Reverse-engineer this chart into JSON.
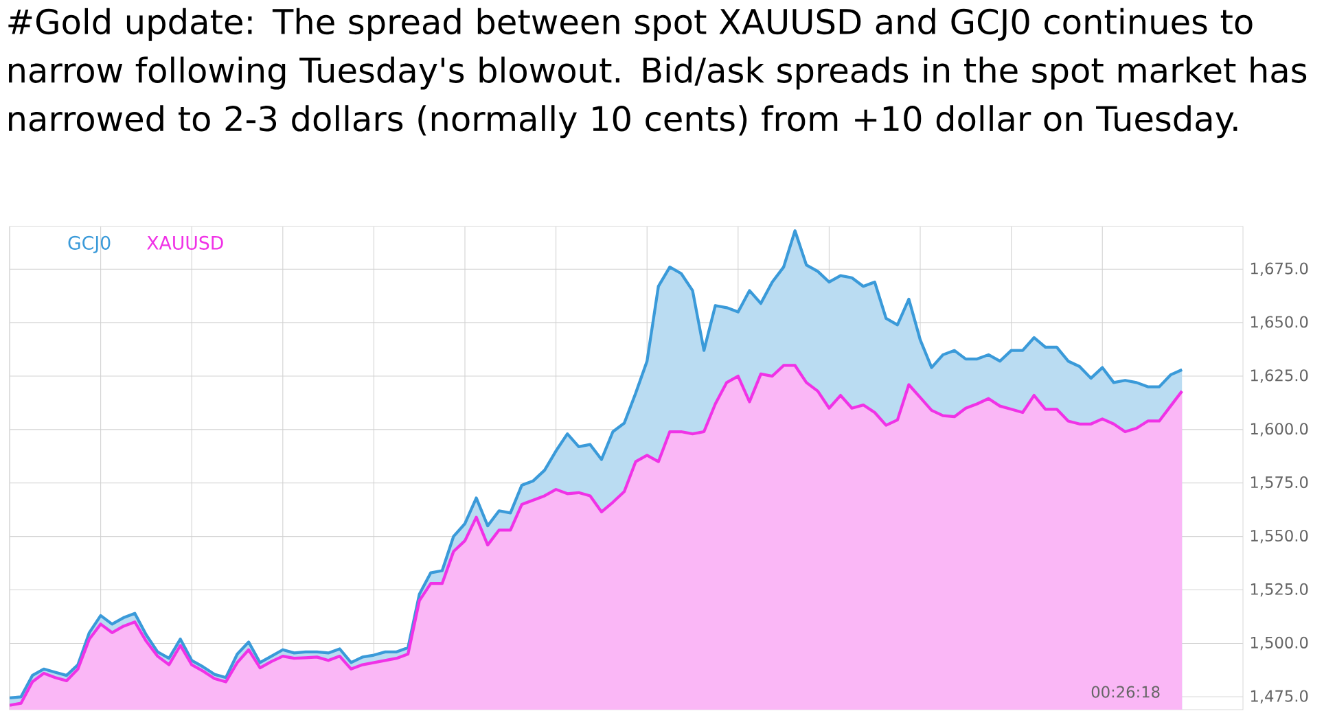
{
  "chart_data": {
    "type": "area",
    "title": "#Gold update: The spread between spot XAUUSD and GCJ0 continues to narrow following Tuesday's blowout. Bid/ask spreads in the spot market has narrowed to 2-3 dollars (normally 10 cents) from +10 dollar on Tuesday.",
    "categories": [
      null,
      null,
      null,
      null,
      null,
      null,
      null,
      null,
      null,
      null,
      null,
      null,
      null,
      null,
      null,
      null,
      null,
      null,
      null,
      null,
      null,
      null,
      null,
      null,
      null,
      null,
      null,
      null,
      null,
      null,
      null,
      null,
      null,
      null,
      null,
      null,
      null,
      null,
      null,
      null,
      null,
      null,
      null,
      null,
      null,
      null,
      null,
      null,
      null,
      null,
      null,
      null,
      null,
      null,
      null,
      null,
      null,
      null,
      null,
      null,
      null,
      null,
      null,
      null,
      null,
      null,
      null,
      null,
      null,
      null,
      null,
      null,
      null,
      null,
      null,
      null,
      null,
      null,
      null,
      null,
      null,
      null,
      null,
      null,
      null,
      null,
      null,
      null,
      null,
      null,
      null,
      null,
      null,
      null,
      null,
      null,
      null,
      null,
      null,
      null,
      null,
      null,
      null,
      null
    ],
    "series": [
      {
        "name": "GCJ0",
        "color": "#3a9ad9",
        "values": [
          1474.5,
          1475,
          1485,
          1488,
          1486.5,
          1485,
          1490,
          1505,
          1513,
          1509,
          1512,
          1514,
          1504,
          1496,
          1493,
          1502,
          1492,
          1489,
          1485.5,
          1484,
          1495,
          1500.6,
          1491,
          1494,
          1497,
          1495.5,
          1496,
          1496,
          1495.5,
          1497.4,
          1491,
          1493.6,
          1494.5,
          1496,
          1496,
          1498,
          1523,
          1533,
          1534,
          1550,
          1556,
          1568,
          1555,
          1562,
          1561,
          1574,
          1576,
          1581,
          1590,
          1598,
          1592,
          1593,
          1586,
          1599,
          1603,
          1617,
          1632,
          1667,
          1676,
          1673,
          1665,
          1637,
          1658,
          1657,
          1655,
          1665,
          1659,
          1669,
          1676,
          1693,
          1677,
          1674,
          1669,
          1672,
          1671,
          1667,
          1669,
          1652,
          1649,
          1661,
          1642,
          1629,
          1635,
          1637,
          1633,
          1633,
          1635,
          1632,
          1637,
          1637,
          1643,
          1638.5,
          1638.5,
          1632,
          1629.5,
          1624,
          1629,
          1622,
          1623,
          1622,
          1620,
          1620,
          1625.6,
          1628
        ]
      },
      {
        "name": "XAUUSD",
        "color": "#f032e6",
        "values": [
          1471,
          1472,
          1482,
          1486,
          1484,
          1482.5,
          1488,
          1502,
          1509,
          1505,
          1508,
          1510,
          1501,
          1494,
          1490,
          1499,
          1490,
          1487,
          1483.5,
          1482,
          1491,
          1497,
          1488.5,
          1491.5,
          1494,
          1493,
          1493.3,
          1493.6,
          1492,
          1494,
          1488,
          1490,
          1491,
          1492,
          1493,
          1495,
          1520,
          1528,
          1528,
          1543,
          1548,
          1559,
          1546,
          1553,
          1553,
          1565,
          1567,
          1569,
          1572,
          1570,
          1570.5,
          1569,
          1561.5,
          1566,
          1571,
          1585,
          1588,
          1585,
          1599,
          1599,
          1598,
          1599,
          1612,
          1622,
          1625,
          1613,
          1626,
          1625,
          1630,
          1630,
          1622,
          1618,
          1610,
          1616,
          1610,
          1611.5,
          1608,
          1602,
          1604.5,
          1621,
          1615,
          1609,
          1606.5,
          1606,
          1610,
          1612,
          1614.5,
          1611,
          1609.5,
          1608,
          1616,
          1609.5,
          1609.5,
          1604,
          1602.6,
          1602.6,
          1605,
          1602.6,
          1599,
          1600.6,
          1604,
          1604,
          1611,
          1618
        ]
      }
    ],
    "ylim": [
      1469,
      1695
    ],
    "yticks": [
      {
        "value": 1475,
        "label": "1,475.0"
      },
      {
        "value": 1500,
        "label": "1,500.0"
      },
      {
        "value": 1525,
        "label": "1,525.0"
      },
      {
        "value": 1550,
        "label": "1,550.0"
      },
      {
        "value": 1575,
        "label": "1,575.0"
      },
      {
        "value": 1600,
        "label": "1,600.0"
      },
      {
        "value": 1625,
        "label": "1,625.0"
      },
      {
        "value": 1650,
        "label": "1,650.0"
      },
      {
        "value": 1675,
        "label": "1,675.0"
      }
    ],
    "tick_labels": "y",
    "grid": true,
    "legend": "top left",
    "annotations": [
      "00:26:18"
    ]
  }
}
